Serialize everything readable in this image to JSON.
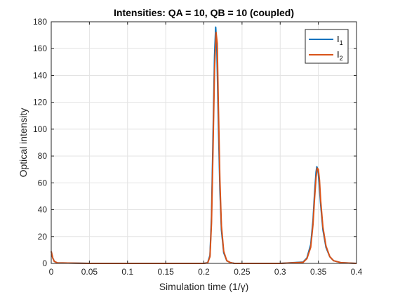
{
  "chart_data": {
    "type": "line",
    "title": "Intensities: QA = 10, QB = 10 (coupled)",
    "xlabel": "Simulation time (1/γ)",
    "ylabel": "Optical intensity",
    "xlim": [
      0,
      0.4
    ],
    "ylim": [
      0,
      180
    ],
    "xticks": [
      "0",
      "0.05",
      "0.1",
      "0.15",
      "0.2",
      "0.25",
      "0.3",
      "0.35",
      "0.4"
    ],
    "yticks": [
      "0",
      "20",
      "40",
      "60",
      "80",
      "100",
      "120",
      "140",
      "160",
      "180"
    ],
    "grid": true,
    "legend_position": "top-right",
    "series": [
      {
        "name": "I",
        "subscript": "1",
        "color": "#0072BD",
        "x": [
          0,
          0.002,
          0.004,
          0.008,
          0.05,
          0.1,
          0.15,
          0.2,
          0.205,
          0.208,
          0.21,
          0.212,
          0.214,
          0.2155,
          0.217,
          0.219,
          0.221,
          0.223,
          0.226,
          0.23,
          0.235,
          0.24,
          0.25,
          0.3,
          0.33,
          0.335,
          0.34,
          0.343,
          0.345,
          0.347,
          0.348,
          0.3495,
          0.351,
          0.353,
          0.356,
          0.36,
          0.365,
          0.37,
          0.38,
          0.4
        ],
        "y": [
          9,
          4,
          1.5,
          0.4,
          0,
          0,
          0,
          0,
          0.5,
          6,
          35,
          95,
          155,
          176,
          160,
          105,
          55,
          25,
          8,
          2,
          0.5,
          0,
          0,
          0,
          1,
          4,
          14,
          32,
          52,
          68,
          72,
          70,
          60,
          44,
          25,
          12,
          5,
          2,
          0.5,
          0
        ]
      },
      {
        "name": "I",
        "subscript": "2",
        "color": "#D95319",
        "x": [
          0,
          0.002,
          0.004,
          0.008,
          0.05,
          0.1,
          0.15,
          0.2,
          0.205,
          0.208,
          0.21,
          0.212,
          0.214,
          0.216,
          0.2175,
          0.219,
          0.221,
          0.223,
          0.226,
          0.23,
          0.235,
          0.24,
          0.25,
          0.3,
          0.33,
          0.335,
          0.34,
          0.343,
          0.345,
          0.347,
          0.3485,
          0.35,
          0.3515,
          0.353,
          0.356,
          0.36,
          0.365,
          0.37,
          0.38,
          0.4
        ],
        "y": [
          9,
          4,
          1.5,
          0.4,
          0,
          0,
          0,
          0,
          0.4,
          5,
          30,
          85,
          145,
          172,
          164,
          118,
          62,
          28,
          9,
          2,
          0.5,
          0,
          0,
          0,
          0.8,
          3.5,
          12,
          29,
          48,
          64,
          71,
          70,
          62,
          47,
          27,
          13,
          5,
          2,
          0.5,
          0
        ]
      }
    ]
  }
}
